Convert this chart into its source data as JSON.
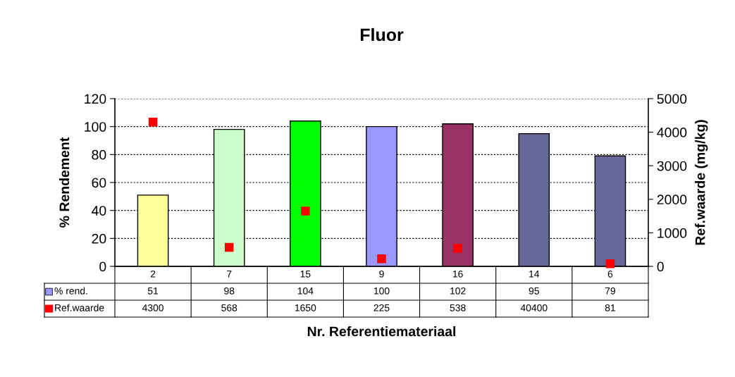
{
  "chart_data": {
    "type": "bar",
    "title": "Fluor",
    "xlabel": "Nr. Referentiemateriaal",
    "ylabel": "% Rendement",
    "y2label": "Ref.waarde (mg/kg)",
    "categories": [
      "2",
      "7",
      "15",
      "9",
      "16",
      "14",
      "6"
    ],
    "series": [
      {
        "name": "% rend.",
        "color": "#9999ff",
        "colors": [
          "#ffff99",
          "#ccffcc",
          "#00ff00",
          "#9999ff",
          "#993366",
          "#666699",
          "#666699"
        ],
        "values": [
          51,
          98,
          104,
          100,
          102,
          95,
          79
        ],
        "value_labels": [
          "51",
          "98",
          "104",
          "100",
          "102",
          "95",
          "79"
        ]
      },
      {
        "name": "Ref.waarde",
        "type": "scatter",
        "axis": "y2",
        "color": "#ff0000",
        "marker": "square",
        "values": [
          4300,
          568,
          1650,
          225,
          538,
          null,
          81
        ],
        "value_labels": [
          "4300",
          "568",
          "1650",
          "225",
          "538",
          "40400",
          "81"
        ]
      }
    ],
    "ylim": [
      0,
      120
    ],
    "yticks": [
      0,
      20,
      40,
      60,
      80,
      100,
      120
    ],
    "y2lim": [
      0,
      5000
    ],
    "y2ticks": [
      0,
      1000,
      2000,
      3000,
      4000,
      5000
    ],
    "grid": "y",
    "legend": "bottom"
  }
}
